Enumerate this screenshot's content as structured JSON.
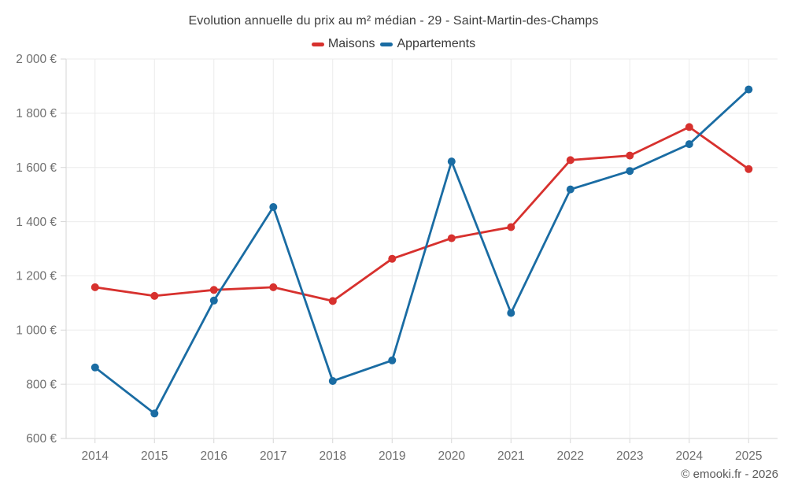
{
  "title": "Evolution annuelle du prix au m² médian - 29 - Saint-Martin-des-Champs",
  "legend": {
    "items": [
      {
        "label": "Maisons",
        "color": "#d7312e"
      },
      {
        "label": "Appartements",
        "color": "#1a6ca3"
      }
    ]
  },
  "footer": {
    "credit": "© emooki.fr - 2026"
  },
  "chart_data": {
    "type": "line",
    "title": "Evolution annuelle du prix au m² médian - 29 - Saint-Martin-des-Champs",
    "categories": [
      "2014",
      "2015",
      "2016",
      "2017",
      "2018",
      "2019",
      "2020",
      "2021",
      "2022",
      "2023",
      "2024",
      "2025"
    ],
    "series": [
      {
        "name": "Maisons",
        "color": "#d7312e",
        "values": [
          1158,
          1126,
          1148,
          1158,
          1107,
          1263,
          1339,
          1380,
          1627,
          1644,
          1749,
          1594
        ]
      },
      {
        "name": "Appartements",
        "color": "#1a6ca3",
        "values": [
          862,
          692,
          1109,
          1454,
          812,
          888,
          1622,
          1063,
          1519,
          1587,
          1686,
          1888
        ]
      }
    ],
    "xlabel": "",
    "ylabel": "",
    "ylim": [
      600,
      2000
    ],
    "ytick_step": 200,
    "ytick_labels": [
      "600 €",
      "800 €",
      "1 000 €",
      "1 200 €",
      "1 400 €",
      "1 600 €",
      "1 800 €",
      "2 000 €"
    ],
    "currency_suffix": " €",
    "grid": true,
    "legend_position": "top"
  },
  "colors": {
    "background": "#ffffff",
    "grid": "#ebebeb",
    "axis": "#d6d6d6",
    "tick_text": "#6f6f6f",
    "title_text": "#3e3e3e",
    "footer_text": "#595959"
  }
}
